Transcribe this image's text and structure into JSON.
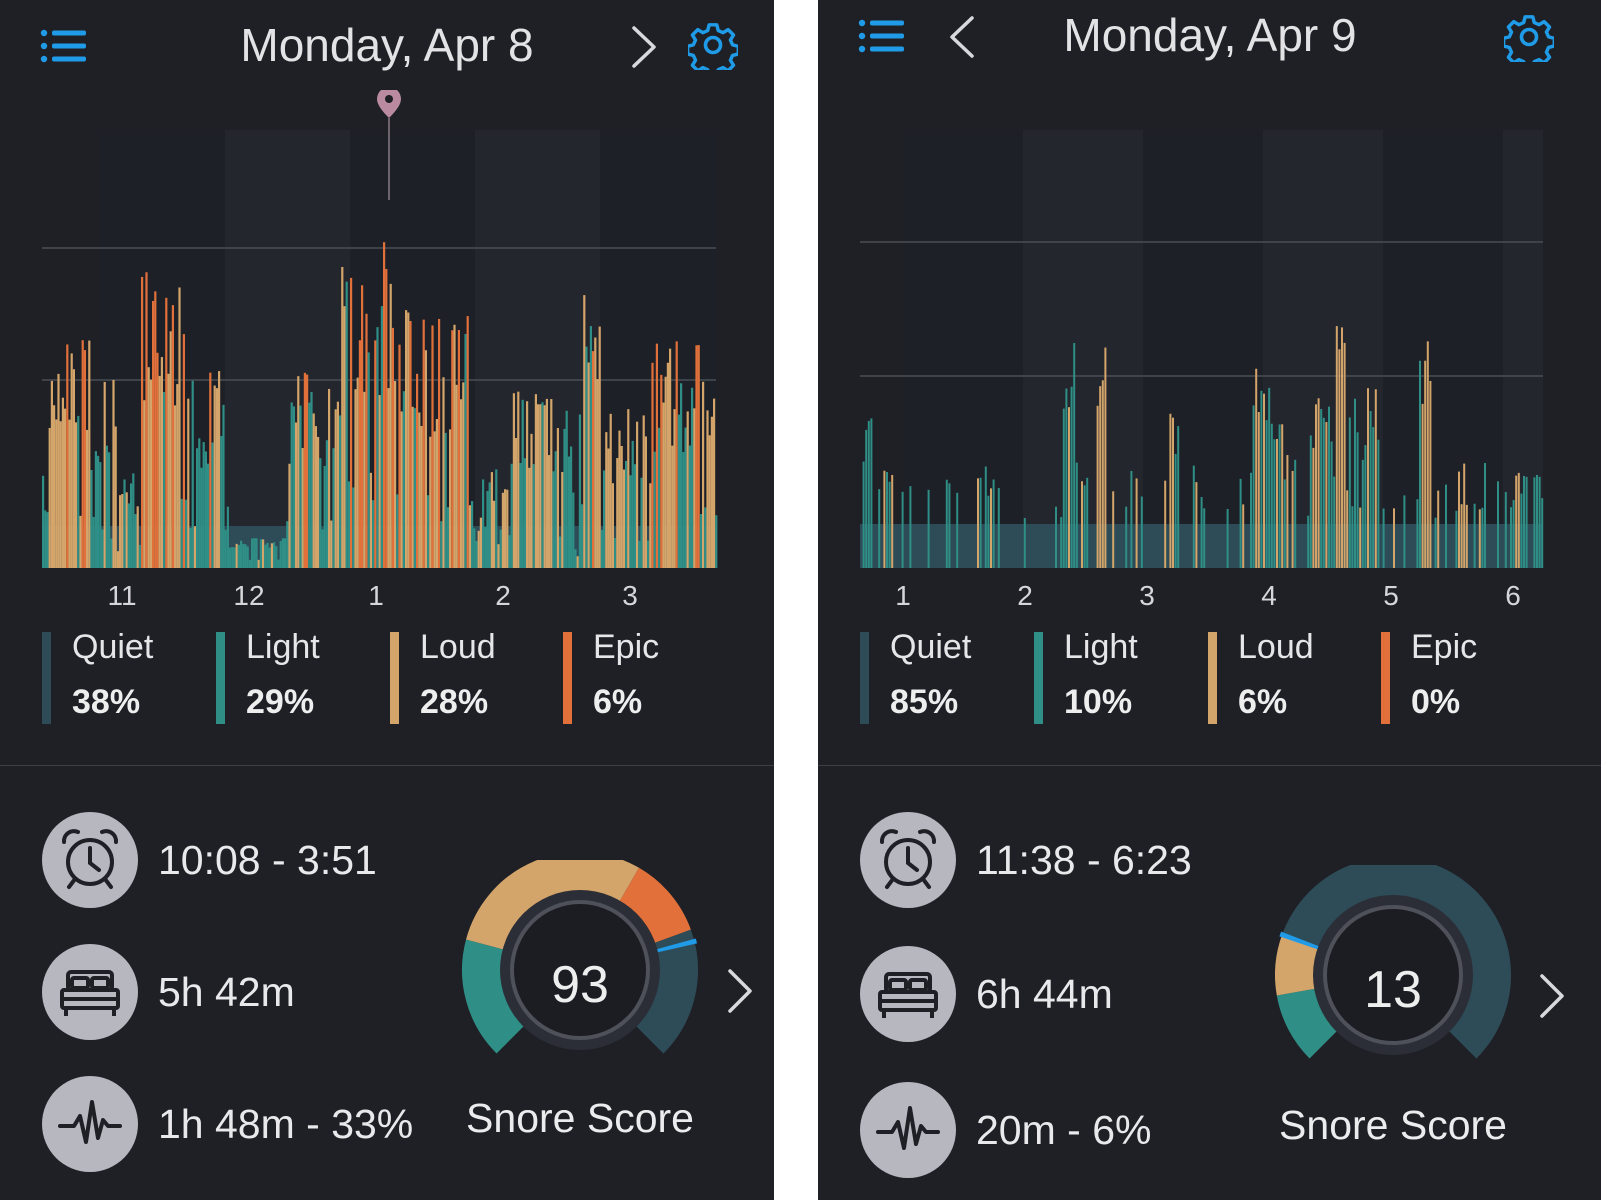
{
  "colors": {
    "background": "#1e2026",
    "quiet": "#2e4c58",
    "light": "#2f8f86",
    "loud": "#d4a56a",
    "epic": "#e2703a",
    "accent_blue": "#1f9be8",
    "marker": "#b98aa0",
    "icon_circle": "#b6b7bf"
  },
  "icons": {
    "menu": "list-menu-icon",
    "next": "chevron-right-icon",
    "prev": "chevron-left-icon",
    "settings": "gear-icon",
    "time": "alarm-clock-icon",
    "bed": "bed-icon",
    "snore": "waveform-icon",
    "marker": "location-pin-icon"
  },
  "panels": [
    {
      "title": "Monday, Apr 8",
      "has_prev": false,
      "has_next": true,
      "ticks": [
        "11",
        "12",
        "1",
        "2",
        "3"
      ],
      "legend": [
        {
          "name": "Quiet",
          "pct": "38%"
        },
        {
          "name": "Light",
          "pct": "29%"
        },
        {
          "name": "Loud",
          "pct": "28%"
        },
        {
          "name": "Epic",
          "pct": "6%"
        }
      ],
      "stats": {
        "time_range": "10:08 - 3:51",
        "sleep_duration": "5h 42m",
        "snore_duration": "1h 48m - 33%"
      },
      "score": {
        "value": "93",
        "label": "Snore Score"
      }
    },
    {
      "title": "Monday, Apr 9",
      "has_prev": true,
      "has_next": false,
      "ticks": [
        "1",
        "2",
        "3",
        "4",
        "5",
        "6"
      ],
      "legend": [
        {
          "name": "Quiet",
          "pct": "85%"
        },
        {
          "name": "Light",
          "pct": "10%"
        },
        {
          "name": "Loud",
          "pct": "6%"
        },
        {
          "name": "Epic",
          "pct": "0%"
        }
      ],
      "stats": {
        "time_range": "11:38 - 6:23",
        "sleep_duration": "6h 44m",
        "snore_duration": "20m - 6%"
      },
      "score": {
        "value": "13",
        "label": "Snore Score"
      }
    }
  ],
  "chart_data": [
    {
      "type": "bar",
      "x_ticks": [
        "11",
        "12",
        "1",
        "2",
        "3"
      ],
      "series": [
        {
          "name": "Quiet",
          "share_percent": 38
        },
        {
          "name": "Light",
          "share_percent": 29
        },
        {
          "name": "Loud",
          "share_percent": 28
        },
        {
          "name": "Epic",
          "share_percent": 6
        }
      ],
      "grid": true,
      "marker": "location pin at peak near 1"
    },
    {
      "type": "bar",
      "x_ticks": [
        "1",
        "2",
        "3",
        "4",
        "5",
        "6"
      ],
      "series": [
        {
          "name": "Quiet",
          "share_percent": 85
        },
        {
          "name": "Light",
          "share_percent": 10
        },
        {
          "name": "Loud",
          "share_percent": 6
        },
        {
          "name": "Epic",
          "share_percent": 0
        }
      ],
      "grid": true
    }
  ]
}
